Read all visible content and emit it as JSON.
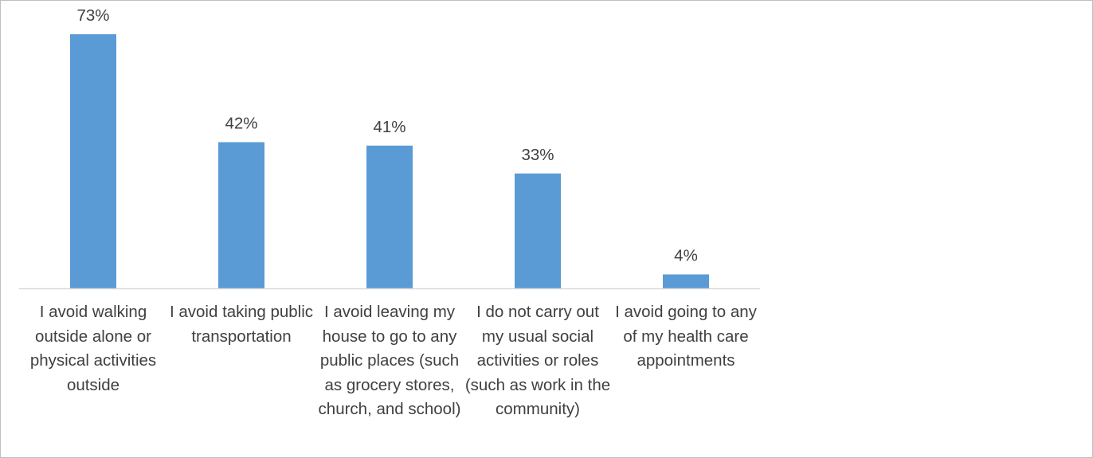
{
  "chart_data": {
    "type": "bar",
    "title": "",
    "xlabel": "",
    "ylabel": "",
    "ylim": [
      0,
      73
    ],
    "grid": false,
    "legend": "none",
    "categories": [
      "I avoid walking outside alone or physical activities outside",
      "I avoid taking public transportation",
      "I avoid leaving my house to go to any public places (such as grocery stores, church, and school)",
      "I do not carry out my usual social activities or roles (such as work in the community)",
      "I avoid going to any of my health care appointments"
    ],
    "values": [
      73,
      42,
      41,
      33,
      4
    ],
    "data_labels": [
      "73%",
      "42%",
      "41%",
      "33%",
      "4%"
    ],
    "bar_color": "#5b9bd5",
    "axis_color": "#d9d9d9",
    "label_color": "#404040"
  }
}
